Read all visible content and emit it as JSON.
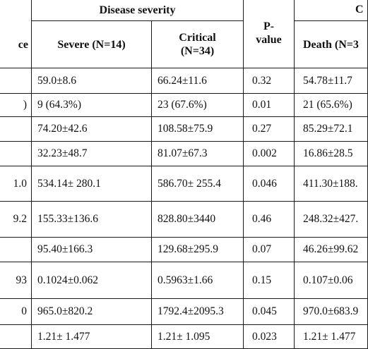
{
  "header": {
    "group_title": "Disease severity",
    "outcome_title_fragment": "C",
    "col0_fragment": "ce",
    "severe": "Severe (N=14)",
    "critical_line1": "Critical",
    "critical_line2": "(N=34)",
    "pvalue_line1": "P-",
    "pvalue_line2": "value",
    "death": "Death (N=3"
  },
  "rows": [
    {
      "c0": "",
      "severe": "59.0±8.6",
      "critical": "66.24±11.6",
      "p": "0.32",
      "death": "54.78±11.7"
    },
    {
      "c0": ")",
      "severe": "9 (64.3%)",
      "critical": "23 (67.6%)",
      "p": "0.01",
      "death": "21 (65.6%)"
    },
    {
      "c0": "",
      "severe": "74.20±42.6",
      "critical": "108.58±75.9",
      "p": "0.27",
      "death": "85.29±72.1"
    },
    {
      "c0": "",
      "severe": "32.23±48.7",
      "critical": "81.07±67.3",
      "p": "0.002",
      "death": "16.86±28.5"
    },
    {
      "c0": "1.0",
      "severe": "534.14± 280.1",
      "critical": "586.70± 255.4",
      "p": "0.046",
      "death": "411.30±188."
    },
    {
      "c0": "9.2",
      "severe": "155.33±136.6",
      "critical": "828.80±3440",
      "p": "0.46",
      "death": "248.32±427."
    },
    {
      "c0": "",
      "severe": "95.40±166.3",
      "critical": "129.68±295.9",
      "p": "0.07",
      "death": "46.26±99.62"
    },
    {
      "c0": "93",
      "severe": "0.1024±0.062",
      "critical": "0.5963±1.66",
      "p": "0.15",
      "death": "0.107±0.06"
    },
    {
      "c0": "0",
      "severe": "965.0±820.2",
      "critical": "1792.4±2095.3",
      "p": "0.045",
      "death": "970.0±683.9"
    },
    {
      "c0": "",
      "severe": "1.21± 1.477",
      "critical": "1.21± 1.095",
      "p": "0.023",
      "death": "1.21± 1.477"
    }
  ]
}
